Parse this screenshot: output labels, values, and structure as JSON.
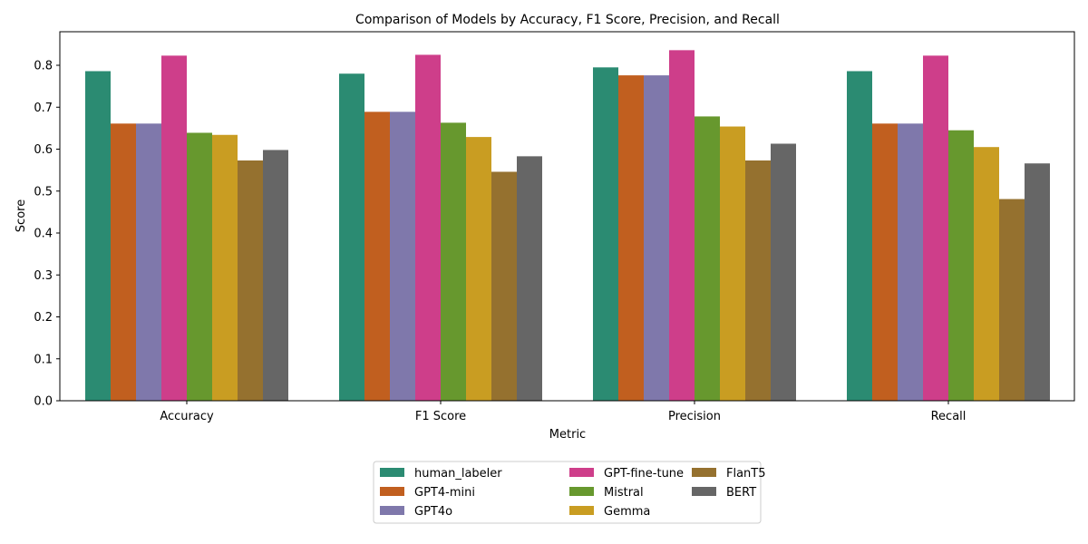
{
  "chart_data": {
    "type": "bar",
    "title": "Comparison of Models by Accuracy, F1 Score, Precision, and Recall",
    "xlabel": "Metric",
    "ylabel": "Score",
    "ylim": [
      0,
      0.88
    ],
    "yticks": [
      "0.0",
      "0.1",
      "0.2",
      "0.3",
      "0.4",
      "0.5",
      "0.6",
      "0.7",
      "0.8"
    ],
    "grid": false,
    "legend_placement": "bottom-center",
    "categories": [
      "Accuracy",
      "F1 Score",
      "Precision",
      "Recall"
    ],
    "series": [
      {
        "name": "human_labeler",
        "color": "#2b8b72",
        "values": [
          0.786,
          0.78,
          0.795,
          0.786
        ]
      },
      {
        "name": "GPT4-mini",
        "color": "#c15f1f",
        "values": [
          0.661,
          0.689,
          0.776,
          0.661
        ]
      },
      {
        "name": "GPT4o",
        "color": "#7f78ab",
        "values": [
          0.661,
          0.689,
          0.776,
          0.661
        ]
      },
      {
        "name": "GPT-fine-tune",
        "color": "#ce3e8a",
        "values": [
          0.823,
          0.825,
          0.836,
          0.823
        ]
      },
      {
        "name": "Mistral",
        "color": "#67982e",
        "values": [
          0.639,
          0.663,
          0.678,
          0.645
        ]
      },
      {
        "name": "Gemma",
        "color": "#c99d22",
        "values": [
          0.634,
          0.629,
          0.654,
          0.605
        ]
      },
      {
        "name": "FlanT5",
        "color": "#95712f",
        "values": [
          0.573,
          0.546,
          0.573,
          0.481
        ]
      },
      {
        "name": "BERT",
        "color": "#666666",
        "values": [
          0.598,
          0.583,
          0.613,
          0.566
        ]
      }
    ]
  }
}
